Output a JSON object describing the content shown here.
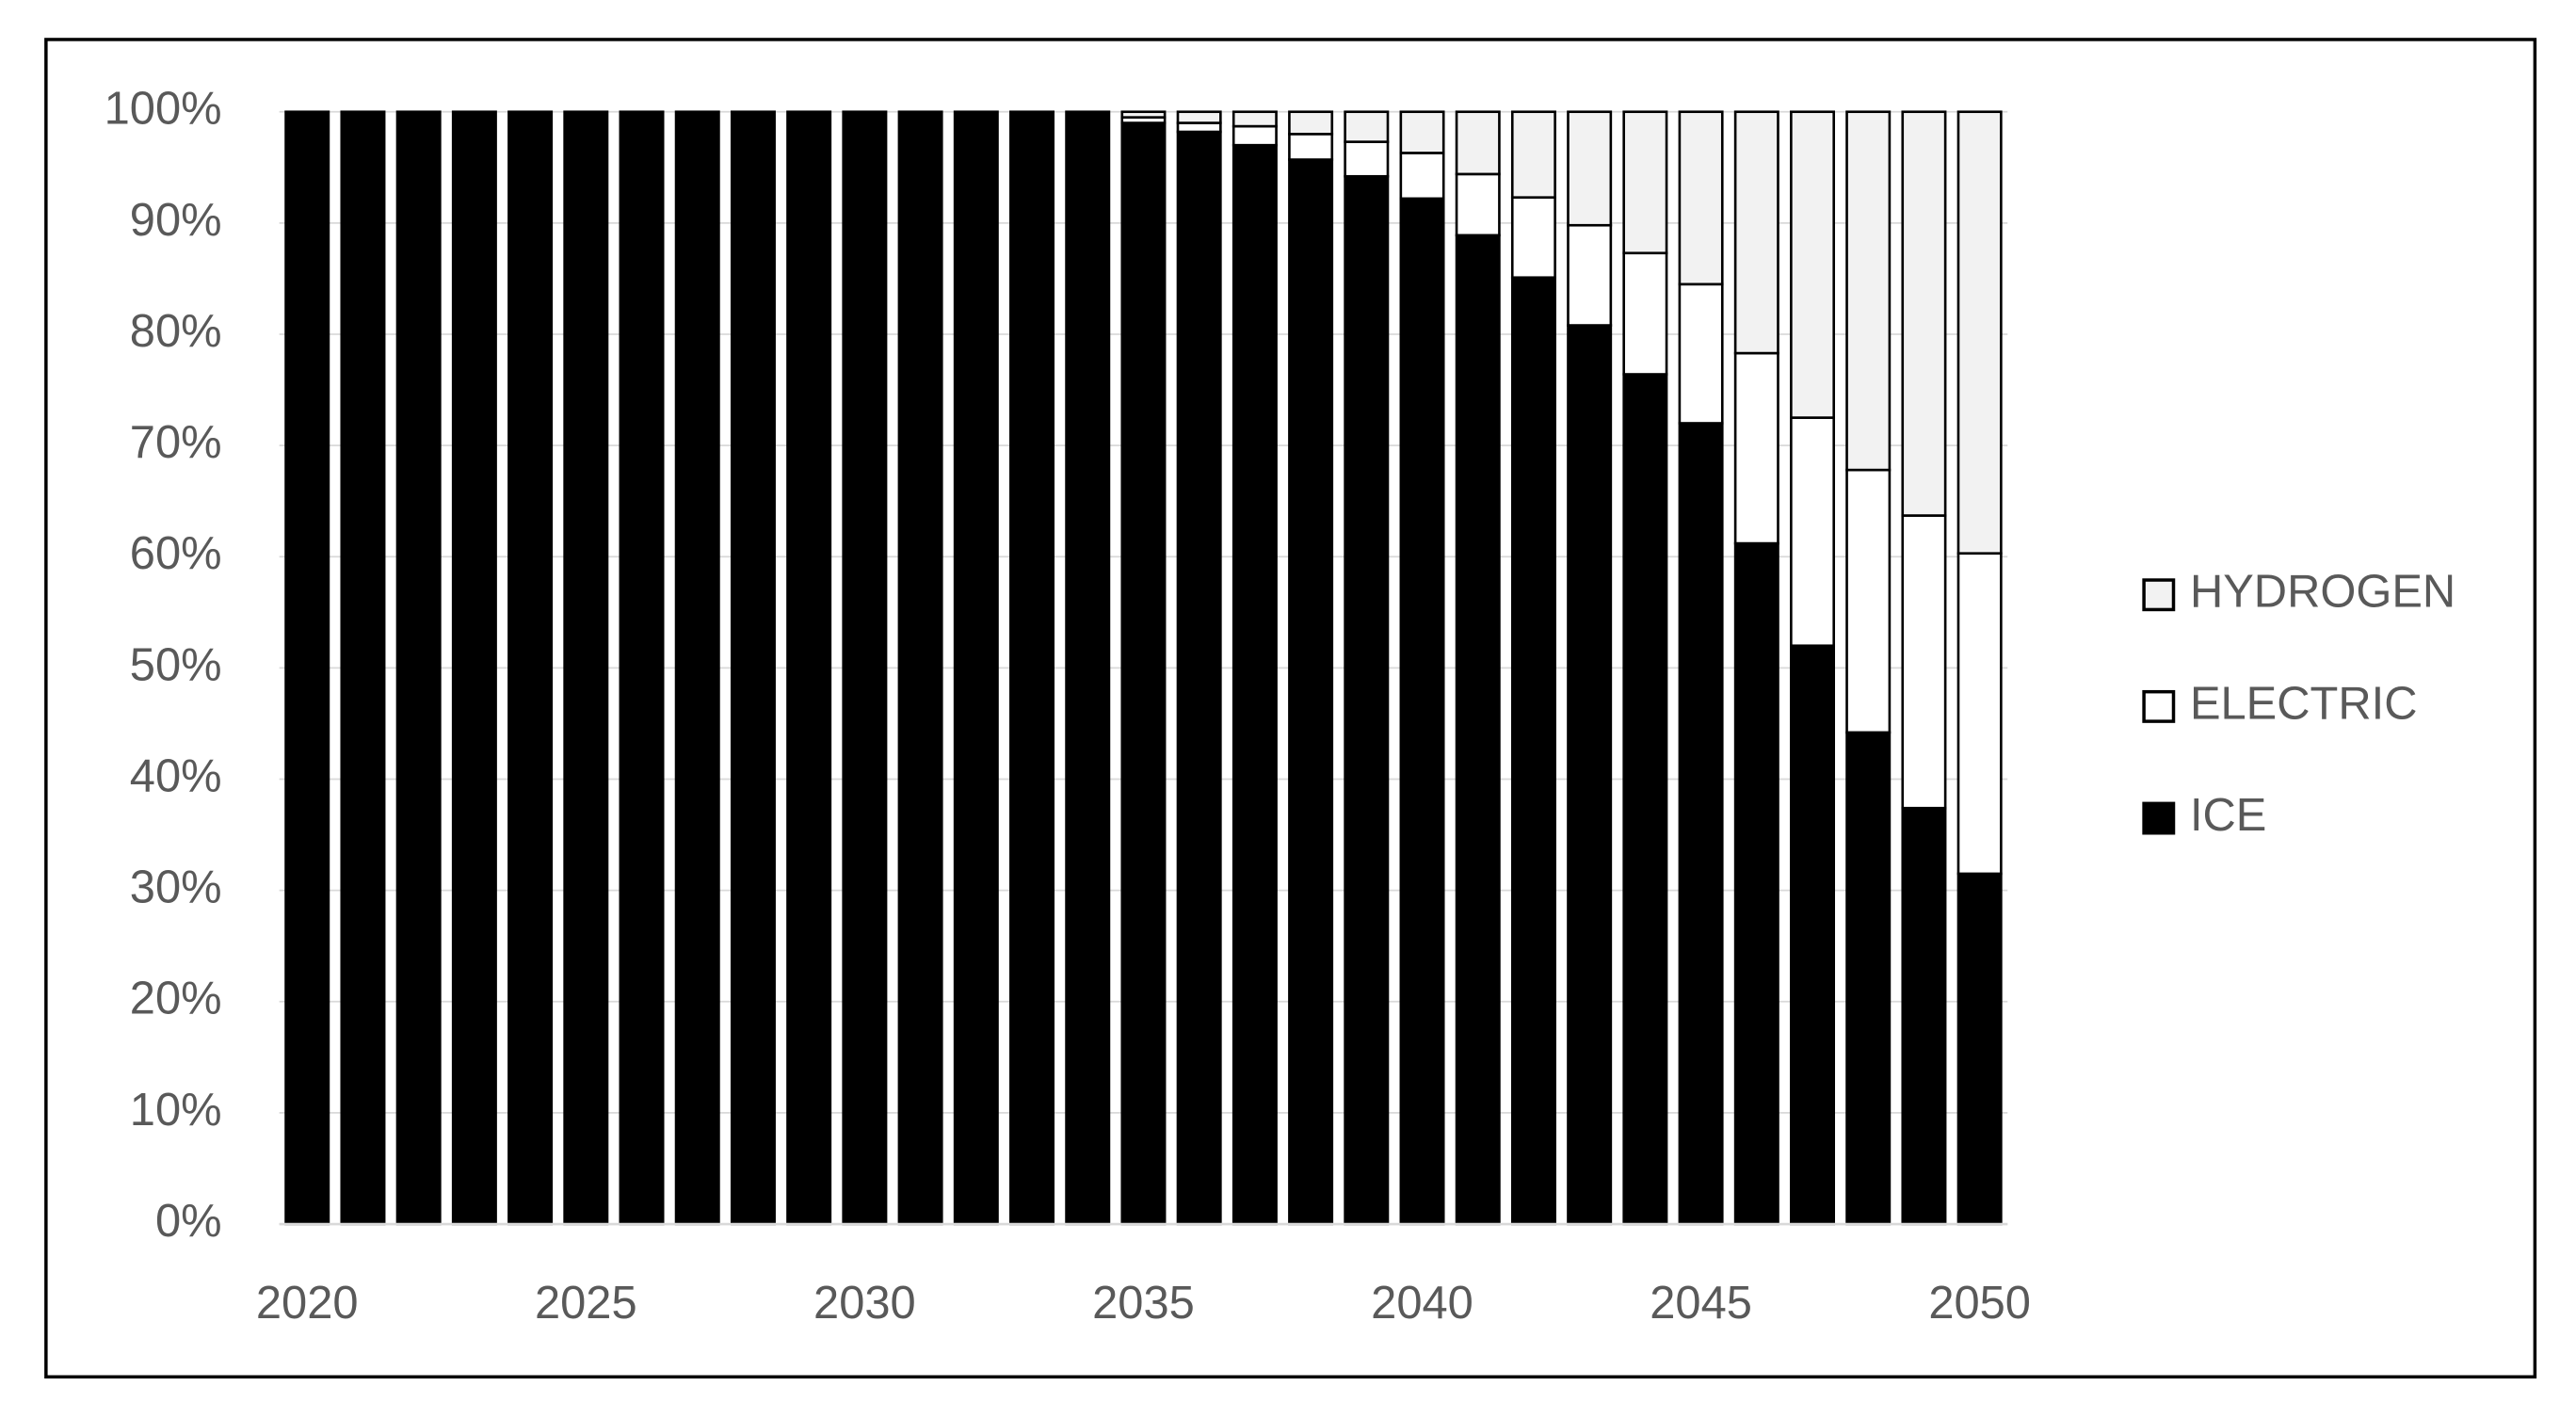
{
  "chart_data": {
    "type": "stacked_bar",
    "categories": [
      "2020",
      null,
      null,
      null,
      null,
      "2025",
      null,
      null,
      null,
      null,
      "2030",
      null,
      null,
      null,
      null,
      "2035",
      null,
      null,
      null,
      null,
      "2040",
      null,
      null,
      null,
      null,
      "2045",
      null,
      null,
      null,
      null,
      "2050"
    ],
    "series": [
      {
        "name": "ICE",
        "color": "#000000",
        "values": [
          100,
          100,
          100,
          100,
          100,
          100,
          100,
          100,
          100,
          100,
          100,
          100,
          100,
          100,
          100,
          99,
          98.2,
          97,
          95.7,
          94.2,
          92.2,
          88.9,
          85.1,
          80.8,
          76.4,
          72.0,
          61.2,
          52.0,
          44.2,
          37.4,
          31.5
        ]
      },
      {
        "name": "ELECTRIC",
        "color": "#ffffff",
        "values": [
          0,
          0,
          0,
          0,
          0,
          0,
          0,
          0,
          0,
          0,
          0,
          0,
          0,
          0,
          0,
          0.5,
          0.8,
          1.7,
          2.3,
          3.1,
          4.1,
          5.5,
          7.2,
          9,
          10.9,
          12.5,
          17.1,
          20.5,
          23.6,
          26.3,
          28.8
        ]
      },
      {
        "name": "HYDROGEN",
        "color": "#f2f2f2",
        "values": [
          0,
          0,
          0,
          0,
          0,
          0,
          0,
          0,
          0,
          0,
          0,
          0,
          0,
          0,
          0,
          0.5,
          1.0,
          1.3,
          2,
          2.7,
          3.7,
          5.6,
          7.7,
          10.2,
          12.7,
          15.5,
          21.7,
          27.5,
          32.2,
          36.3,
          39.7
        ]
      }
    ],
    "ylim": [
      0,
      100
    ],
    "yticks": [
      {
        "value": 0,
        "label": "0%"
      },
      {
        "value": 10,
        "label": "10%"
      },
      {
        "value": 20,
        "label": "20%"
      },
      {
        "value": 30,
        "label": "30%"
      },
      {
        "value": 40,
        "label": "40%"
      },
      {
        "value": 50,
        "label": "50%"
      },
      {
        "value": 60,
        "label": "60%"
      },
      {
        "value": 70,
        "label": "70%"
      },
      {
        "value": 80,
        "label": "80%"
      },
      {
        "value": 90,
        "label": "90%"
      },
      {
        "value": 100,
        "label": "100%"
      }
    ],
    "grid": true,
    "legend": "right"
  }
}
